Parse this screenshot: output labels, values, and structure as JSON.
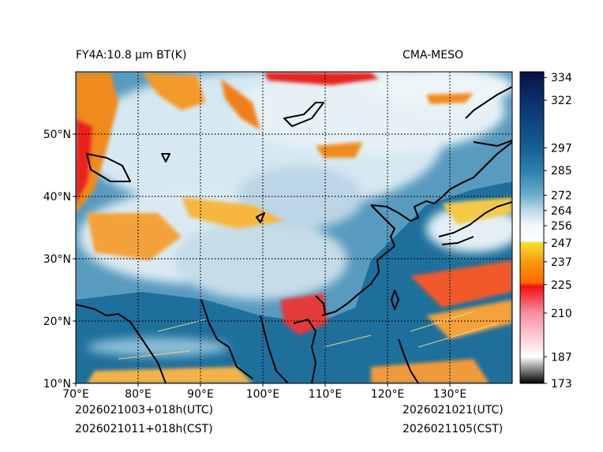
{
  "header": {
    "product_title": "FY4A:10.8 µm BT(K)",
    "model_name": "CMA-MESO"
  },
  "footer": {
    "init_utc": "2026021003+018h(UTC)",
    "init_cst": "2026021011+018h(CST)",
    "valid_utc": "2026021021(UTC)",
    "valid_cst": "2026021105(CST)"
  },
  "map": {
    "lon_labels": [
      "70°E",
      "80°E",
      "90°E",
      "100°E",
      "110°E",
      "120°E",
      "130°E"
    ],
    "lat_labels": [
      "10°N",
      "20°N",
      "30°N",
      "40°N",
      "50°N"
    ],
    "lon_range": [
      70,
      140
    ],
    "lat_range": [
      10,
      60
    ]
  },
  "colorbar": {
    "range": [
      173,
      337
    ],
    "tick_values": [
      173,
      187,
      210,
      225,
      237,
      247,
      256,
      264,
      272,
      285,
      297,
      322,
      334
    ],
    "tick_labels": [
      "173",
      "187",
      "210",
      "225",
      "237",
      "247",
      "256",
      "264",
      "272",
      "285",
      "297",
      "322",
      "334"
    ],
    "stops": [
      {
        "value": 173,
        "color": "#000000"
      },
      {
        "value": 187,
        "color": "#ffffff"
      },
      {
        "value": 210,
        "color": "#f78fa0"
      },
      {
        "value": 224,
        "color": "#ee1010"
      },
      {
        "value": 226,
        "color": "#ff6a00"
      },
      {
        "value": 237,
        "color": "#f59a10"
      },
      {
        "value": 247,
        "color": "#f7df30"
      },
      {
        "value": 248,
        "color": "#ffffff"
      },
      {
        "value": 256,
        "color": "#f2f8fb"
      },
      {
        "value": 264,
        "color": "#bcd9e8"
      },
      {
        "value": 272,
        "color": "#6fadcc"
      },
      {
        "value": 285,
        "color": "#2b80ad"
      },
      {
        "value": 297,
        "color": "#145f93"
      },
      {
        "value": 322,
        "color": "#0d2f6e"
      },
      {
        "value": 337,
        "color": "#041342"
      }
    ]
  },
  "colors": {
    "ocean": "#1e6f9c",
    "clear_land": "#5f9fc3",
    "cloud_cover": "#cfe3ee",
    "cold_cloud_top": "#f08a1c",
    "very_cold_cloud_top": "#e8201a"
  }
}
